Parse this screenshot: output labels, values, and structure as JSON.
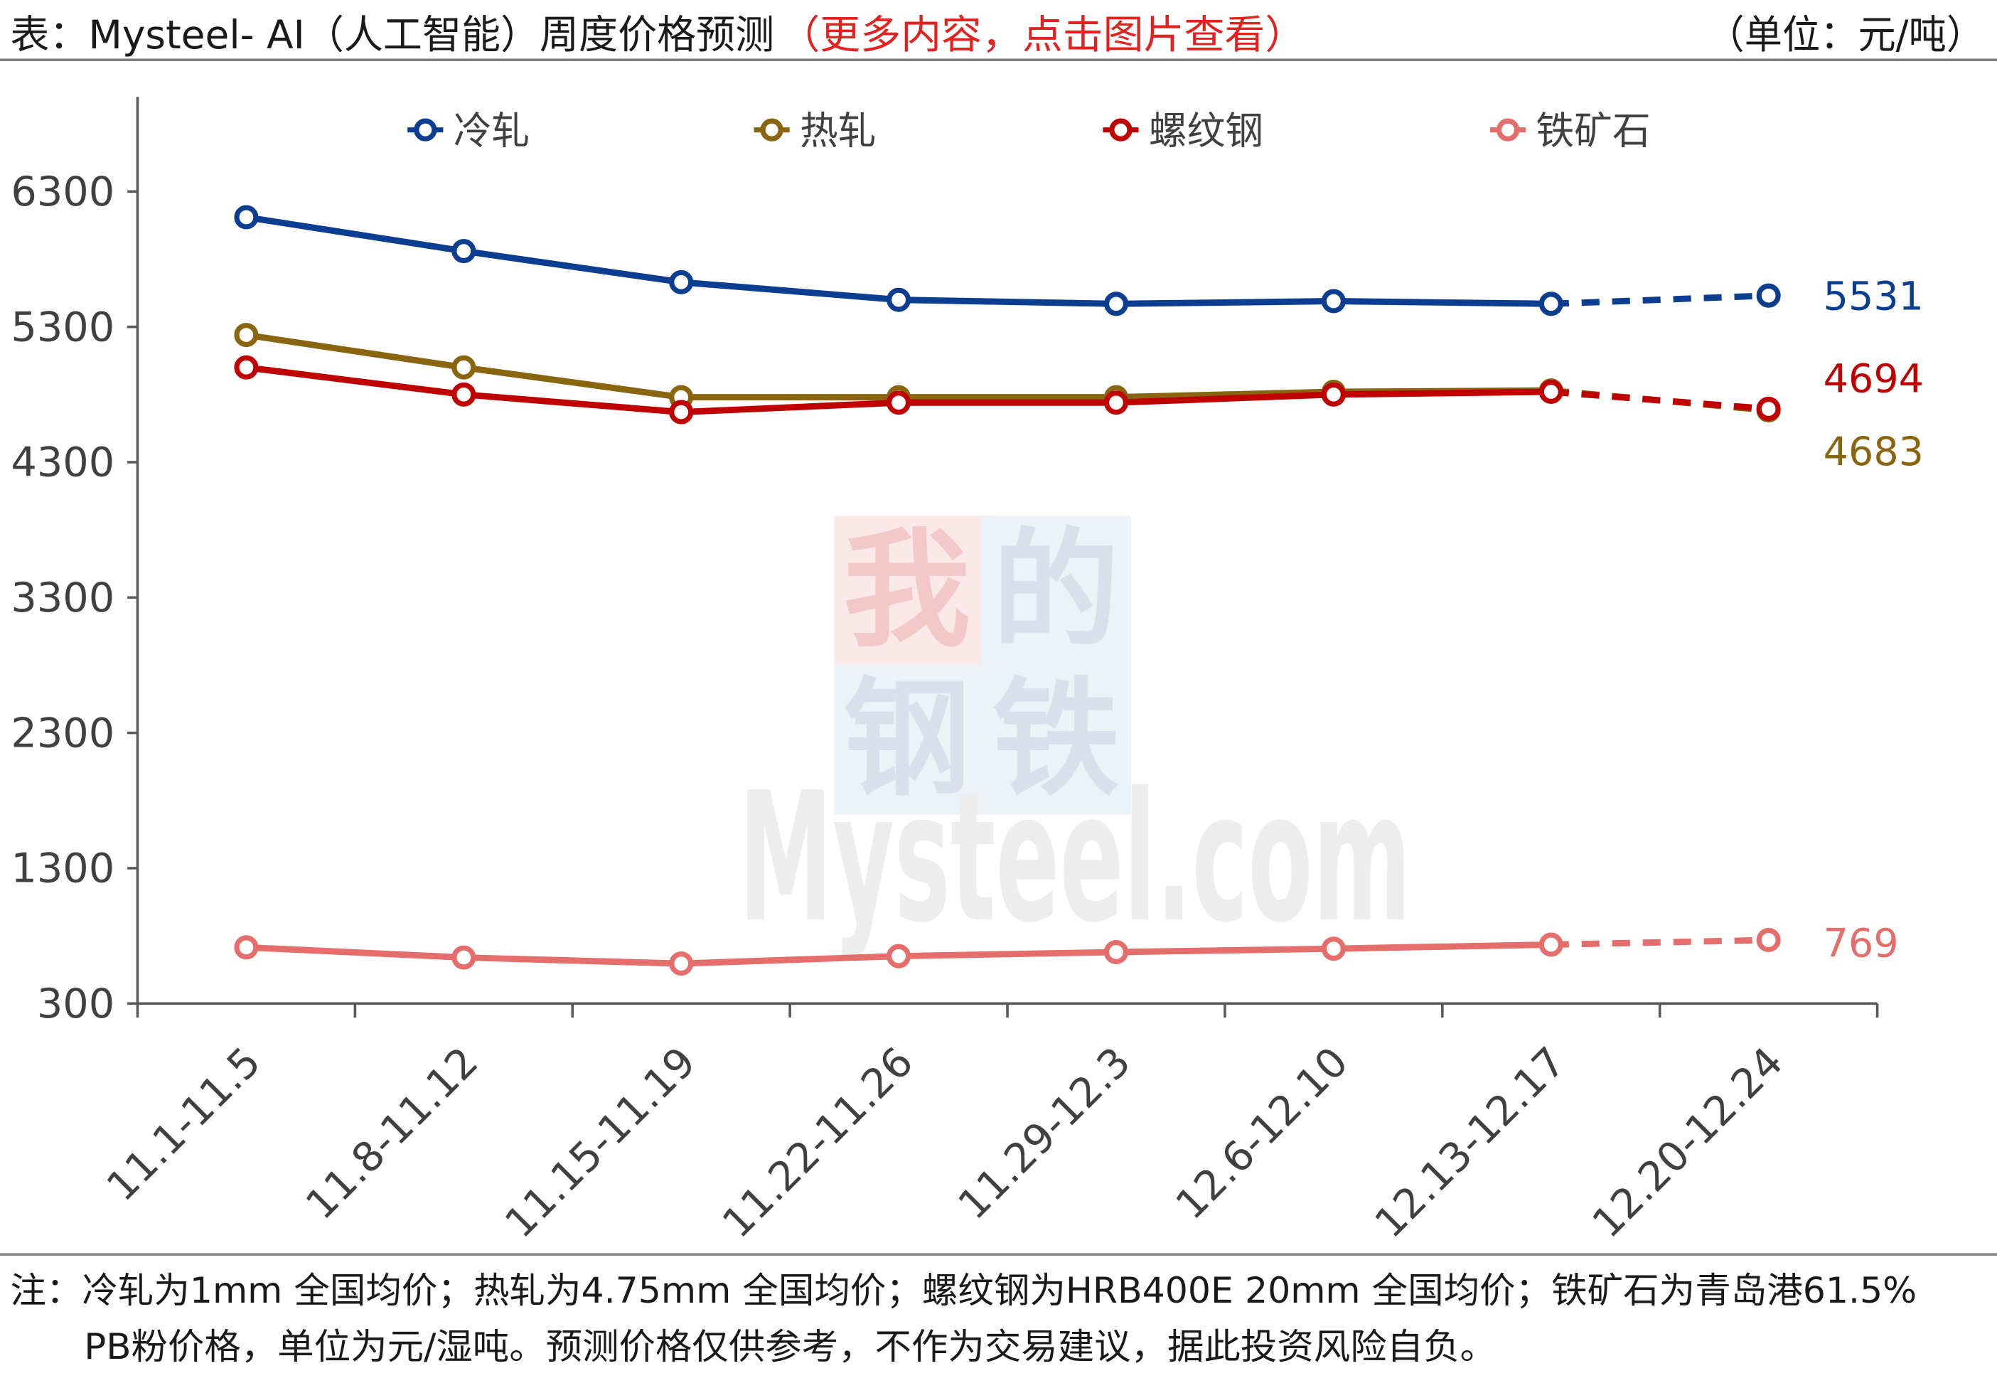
{
  "header": {
    "title": "表：Mysteel- AI（人工智能）周度价格预测",
    "title_link": "（更多内容，点击图片查看）",
    "unit": "（单位：元/吨）"
  },
  "footer": {
    "note_line1": "注：冷轧为1mm 全国均价；热轧为4.75mm 全国均价；螺纹钢为HRB400E 20mm 全国均价；铁矿石为青岛港61.5%",
    "note_line2": "PB粉价格，单位为元/湿吨。预测价格仅供参考，不作为交易建议，据此投资风险自负。"
  },
  "watermark": {
    "logo_chars": [
      "我",
      "的",
      "钢",
      "铁"
    ],
    "text": "Mysteel.com"
  },
  "colors": {
    "title": "#1a1a1a",
    "title_link": "#e3211e",
    "axis": "#595959",
    "text": "#404040",
    "divider": "#808080"
  },
  "chart_data": {
    "type": "line",
    "categories": [
      "11.1-11.5",
      "11.8-11.12",
      "11.15-11.19",
      "11.22-11.26",
      "11.29-12.3",
      "12.6-12.10",
      "12.13-12.17",
      "12.20-12.24"
    ],
    "ylim": [
      300,
      7000
    ],
    "yticks": [
      300,
      1300,
      2300,
      3300,
      4300,
      5300,
      6300
    ],
    "grid": false,
    "legend": "top",
    "forecast_index": 7,
    "series": [
      {
        "name": "冷轧",
        "color": "#0b3d91",
        "values": [
          6110,
          5860,
          5630,
          5500,
          5470,
          5490,
          5470,
          5531
        ]
      },
      {
        "name": "热轧",
        "color": "#8a6510",
        "values": [
          5240,
          5000,
          4780,
          4780,
          4780,
          4820,
          4830,
          4683
        ]
      },
      {
        "name": "螺纹钢",
        "color": "#c00000",
        "values": [
          5000,
          4800,
          4670,
          4740,
          4740,
          4800,
          4820,
          4694
        ]
      },
      {
        "name": "铁矿石",
        "color": "#e56d6b",
        "values": [
          715,
          640,
          595,
          650,
          680,
          705,
          735,
          769
        ]
      }
    ]
  }
}
